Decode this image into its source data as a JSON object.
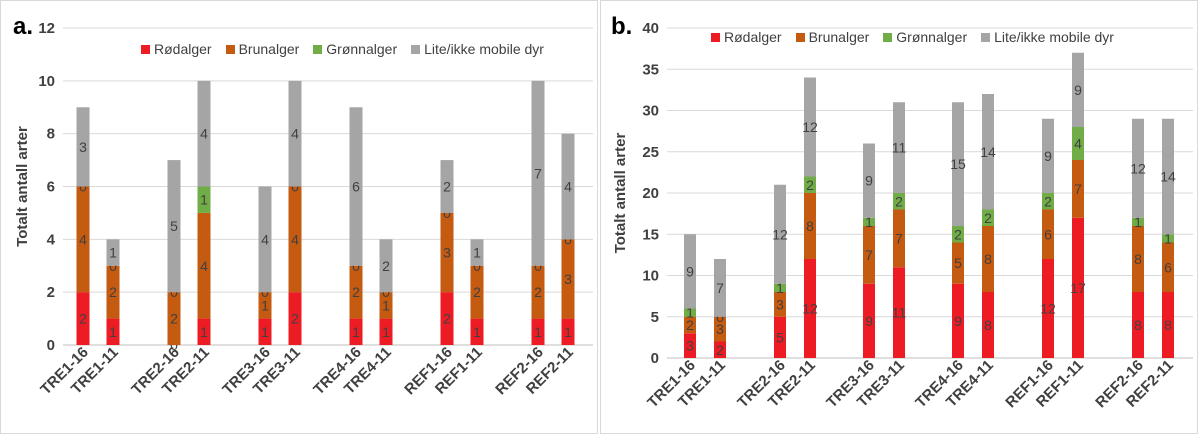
{
  "colors": {
    "rodalger": "#ed1c24",
    "brunalger": "#c55a11",
    "gronnalger": "#70ad47",
    "lite": "#a5a5a5"
  },
  "legend": [
    "Rødalger",
    "Brunalger",
    "Grønnalger",
    "Lite/ikke mobile dyr"
  ],
  "chart_data": [
    {
      "panel_label": "a.",
      "type": "bar",
      "stacked": true,
      "ylabel": "Totalt antall arter",
      "ylim": [
        0,
        12
      ],
      "yticks": [
        0,
        2,
        4,
        6,
        8,
        10,
        12
      ],
      "categories": [
        "TRE1-16",
        "TRE1-11",
        "TRE2-16",
        "TRE2-11",
        "TRE3-16",
        "TRE3-11",
        "TRE4-16",
        "TRE4-11",
        "REF1-16",
        "REF1-11",
        "REF2-16",
        "REF2-11"
      ],
      "series": [
        {
          "name": "Rødalger",
          "values": [
            2,
            1,
            0,
            1,
            1,
            2,
            1,
            1,
            2,
            1,
            1,
            1
          ]
        },
        {
          "name": "Brunalger",
          "values": [
            4,
            2,
            2,
            4,
            1,
            4,
            2,
            1,
            3,
            2,
            2,
            3
          ]
        },
        {
          "name": "Grønnalger",
          "values": [
            0,
            0,
            0,
            1,
            0,
            0,
            0,
            0,
            0,
            0,
            0,
            0
          ]
        },
        {
          "name": "Lite/ikke mobile dyr",
          "values": [
            3,
            1,
            5,
            4,
            4,
            4,
            6,
            2,
            2,
            1,
            7,
            4
          ]
        }
      ]
    },
    {
      "panel_label": "b.",
      "type": "bar",
      "stacked": true,
      "ylabel": "Totalt antall arter",
      "ylim": [
        0,
        40
      ],
      "yticks": [
        0,
        5,
        10,
        15,
        20,
        25,
        30,
        35,
        40
      ],
      "categories": [
        "TRE1-16",
        "TRE1-11",
        "TRE2-16",
        "TRE2-11",
        "TRE3-16",
        "TRE3-11",
        "TRE4-16",
        "TRE4-11",
        "REF1-16",
        "REF1-11",
        "REF2-16",
        "REF2-11"
      ],
      "series": [
        {
          "name": "Rødalger",
          "values": [
            3,
            2,
            5,
            12,
            9,
            11,
            9,
            8,
            12,
            17,
            8,
            8
          ]
        },
        {
          "name": "Brunalger",
          "values": [
            2,
            3,
            3,
            8,
            7,
            7,
            5,
            8,
            6,
            7,
            8,
            6
          ]
        },
        {
          "name": "Grønnalger",
          "values": [
            1,
            0,
            1,
            2,
            1,
            2,
            2,
            2,
            2,
            4,
            1,
            1
          ]
        },
        {
          "name": "Lite/ikke mobile dyr",
          "values": [
            9,
            7,
            12,
            12,
            9,
            11,
            15,
            14,
            9,
            9,
            12,
            14
          ]
        }
      ]
    }
  ]
}
